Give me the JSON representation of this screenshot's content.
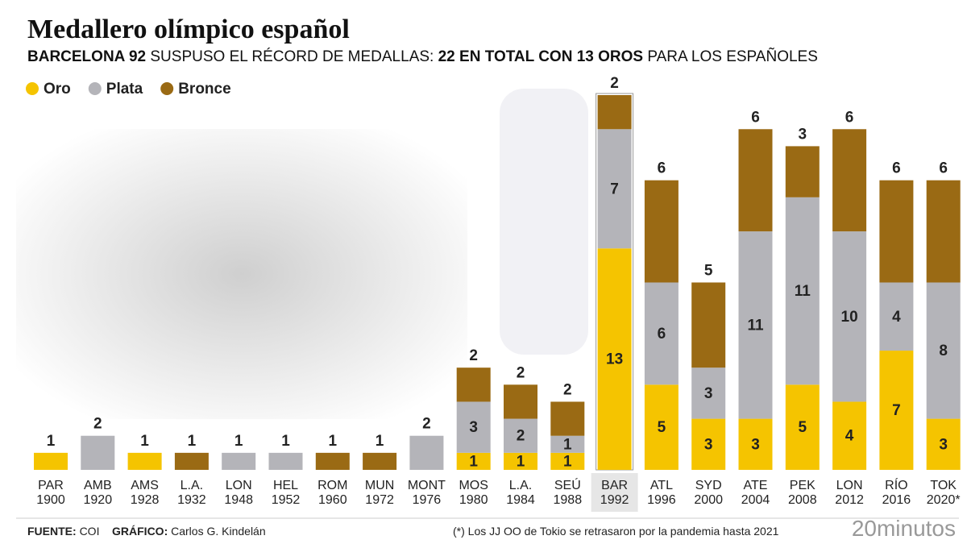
{
  "chart_data": {
    "type": "stacked_bar",
    "title": "Medallero olímpico español",
    "subtitle": [
      "BARCELONA 92",
      " SUSPUSO EL RÉCORD DE MEDALLAS: ",
      "22 EN TOTAL CON 13 OROS",
      " PARA LOS ESPAÑOLES"
    ],
    "categories": [
      "PAR\n1900",
      "AMB\n1920",
      "AMS\n1928",
      "L.A.\n1932",
      "LON\n1948",
      "HEL\n1952",
      "ROM\n1960",
      "MUN\n1972",
      "MONT\n1976",
      "MOS\n1980",
      "L.A.\n1984",
      "SEÚ\n1988",
      "BAR\n1992",
      "ATL\n1996",
      "SYD\n2000",
      "ATE\n2004",
      "PEK\n2008",
      "LON\n2012",
      "RÍO\n2016",
      "TOK\n2020*"
    ],
    "series": [
      {
        "name": "Oro",
        "color": "#f5c400",
        "values": [
          1,
          0,
          1,
          0,
          0,
          0,
          0,
          0,
          0,
          1,
          1,
          1,
          13,
          5,
          3,
          3,
          5,
          4,
          7,
          3
        ]
      },
      {
        "name": "Plata",
        "color": "#b4b4b9",
        "values": [
          0,
          2,
          0,
          0,
          1,
          1,
          0,
          0,
          2,
          3,
          2,
          1,
          7,
          6,
          3,
          11,
          11,
          10,
          4,
          8
        ]
      },
      {
        "name": "Bronce",
        "color": "#9a6a14",
        "values": [
          0,
          0,
          0,
          1,
          0,
          0,
          1,
          1,
          0,
          2,
          2,
          2,
          2,
          6,
          5,
          6,
          3,
          6,
          6,
          6
        ]
      }
    ],
    "ylim": [
      0,
      22
    ],
    "highlight": 12,
    "footer": {
      "source_label": "FUENTE:",
      "source": "COI",
      "graphic_label": "GRÁFICO:",
      "graphic": "Carlos G. Kindelán",
      "note": "(*) Los JJ OO de Tokio se retrasaron por la pandemia hasta 2021",
      "logo": "20minutos"
    }
  }
}
